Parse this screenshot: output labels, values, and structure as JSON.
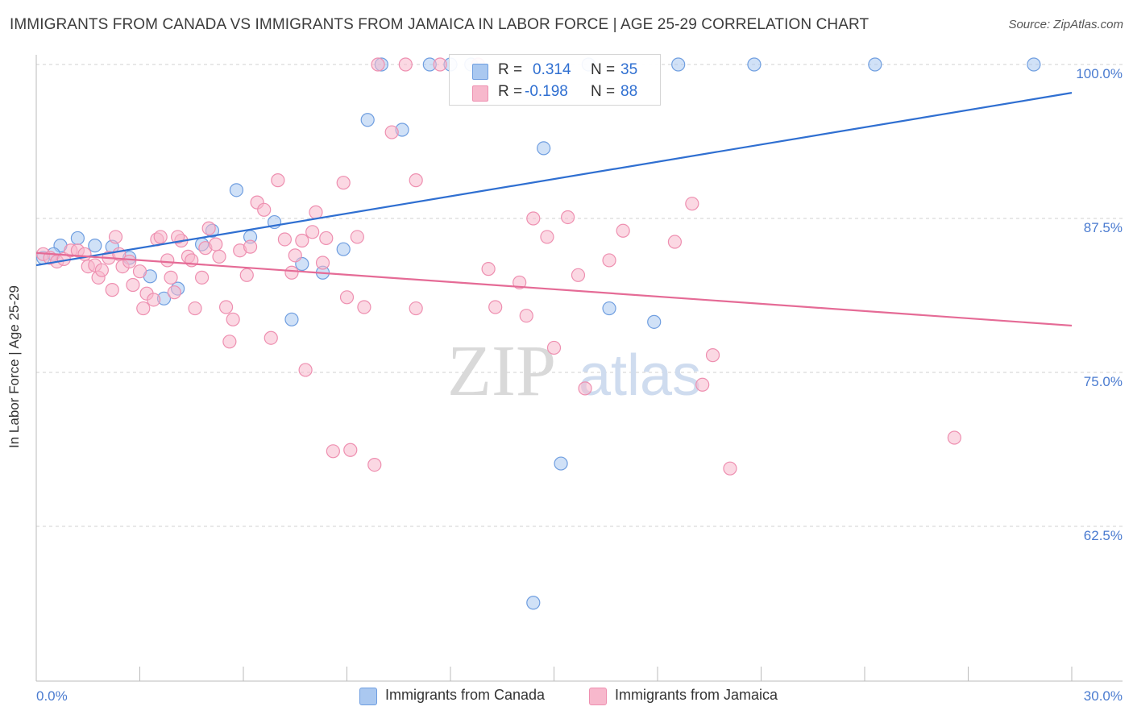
{
  "header": {
    "title": "IMMIGRANTS FROM CANADA VS IMMIGRANTS FROM JAMAICA IN LABOR FORCE | AGE 25-29 CORRELATION CHART",
    "source": "Source: ZipAtlas.com"
  },
  "watermark": {
    "part1": "ZIP",
    "part2": "atlas"
  },
  "colors": {
    "canada_fill": "#aac8f0",
    "canada_stroke": "#6f9ee0",
    "canada_line": "#2f6fd1",
    "jamaica_fill": "#f7b8cc",
    "jamaica_stroke": "#ee8fb0",
    "jamaica_line": "#e56b96",
    "tick_label": "#4a7bd0",
    "grid": "#d0d0d0"
  },
  "legend": {
    "rows": [
      {
        "r_label": "R =",
        "r_value": "0.314",
        "n_label": "N =",
        "n_value": "35"
      },
      {
        "r_label": "R =",
        "r_value": "-0.198",
        "n_label": "N =",
        "n_value": "88"
      }
    ]
  },
  "bottom_legend": [
    {
      "label": "Immigrants from Canada"
    },
    {
      "label": "Immigrants from Jamaica"
    }
  ],
  "chart_data": {
    "type": "scatter",
    "title": "IMMIGRANTS FROM CANADA VS IMMIGRANTS FROM JAMAICA IN LABOR FORCE | AGE 25-29 CORRELATION CHART",
    "xlabel": "",
    "ylabel": "In Labor Force | Age 25-29",
    "xlim": [
      0,
      30
    ],
    "ylim": [
      50,
      101
    ],
    "x_tick_labels": [
      "0.0%",
      "30.0%"
    ],
    "y_ticks": [
      62.5,
      75.0,
      87.5,
      100.0
    ],
    "y_tick_labels": [
      "62.5%",
      "75.0%",
      "87.5%",
      "100.0%"
    ],
    "grid": true,
    "legend_position": "top-center",
    "series": [
      {
        "name": "Immigrants from Canada",
        "trend": {
          "x0": 0.0,
          "y0": 83.7,
          "x1": 30.0,
          "y1": 97.7
        },
        "points": [
          [
            0.2,
            84.3
          ],
          [
            0.7,
            85.3
          ],
          [
            1.2,
            85.9
          ],
          [
            1.7,
            85.3
          ],
          [
            2.2,
            85.2
          ],
          [
            2.7,
            84.3
          ],
          [
            3.3,
            82.8
          ],
          [
            3.7,
            81.0
          ],
          [
            4.1,
            81.8
          ],
          [
            4.8,
            85.4
          ],
          [
            5.1,
            86.5
          ],
          [
            5.8,
            89.8
          ],
          [
            6.2,
            86.0
          ],
          [
            6.9,
            87.2
          ],
          [
            7.4,
            79.3
          ],
          [
            7.7,
            83.8
          ],
          [
            8.3,
            83.1
          ],
          [
            8.9,
            85.0
          ],
          [
            9.6,
            95.5
          ],
          [
            10.0,
            100.0
          ],
          [
            10.6,
            94.7
          ],
          [
            11.4,
            100.0
          ],
          [
            12.0,
            100.0
          ],
          [
            12.6,
            100.0
          ],
          [
            14.7,
            93.2
          ],
          [
            14.4,
            56.3
          ],
          [
            15.2,
            67.6
          ],
          [
            16.0,
            100.0
          ],
          [
            16.6,
            80.2
          ],
          [
            17.9,
            79.1
          ],
          [
            18.6,
            100.0
          ],
          [
            20.8,
            100.0
          ],
          [
            24.3,
            100.0
          ],
          [
            28.9,
            100.0
          ],
          [
            0.5,
            84.6
          ]
        ]
      },
      {
        "name": "Immigrants from Jamaica",
        "trend": {
          "x0": 0.0,
          "y0": 84.7,
          "x1": 30.0,
          "y1": 78.8
        },
        "points": [
          [
            0.2,
            84.6
          ],
          [
            0.4,
            84.3
          ],
          [
            0.6,
            84.0
          ],
          [
            0.8,
            84.2
          ],
          [
            1.0,
            84.9
          ],
          [
            1.2,
            84.9
          ],
          [
            1.4,
            84.6
          ],
          [
            1.5,
            83.6
          ],
          [
            1.7,
            83.7
          ],
          [
            1.8,
            82.7
          ],
          [
            1.9,
            83.3
          ],
          [
            2.1,
            84.3
          ],
          [
            2.2,
            81.7
          ],
          [
            2.3,
            86.0
          ],
          [
            2.5,
            83.6
          ],
          [
            2.7,
            84.0
          ],
          [
            2.8,
            82.1
          ],
          [
            3.0,
            83.2
          ],
          [
            3.1,
            80.2
          ],
          [
            3.2,
            81.4
          ],
          [
            3.4,
            80.9
          ],
          [
            3.5,
            85.8
          ],
          [
            3.6,
            86.0
          ],
          [
            3.8,
            84.1
          ],
          [
            3.9,
            82.7
          ],
          [
            4.0,
            81.5
          ],
          [
            4.2,
            85.7
          ],
          [
            4.4,
            84.4
          ],
          [
            4.5,
            84.1
          ],
          [
            4.6,
            80.2
          ],
          [
            4.8,
            82.7
          ],
          [
            4.9,
            85.1
          ],
          [
            5.0,
            86.7
          ],
          [
            5.2,
            85.4
          ],
          [
            5.5,
            80.3
          ],
          [
            5.6,
            77.5
          ],
          [
            5.7,
            79.3
          ],
          [
            5.9,
            84.9
          ],
          [
            6.1,
            82.9
          ],
          [
            6.2,
            85.2
          ],
          [
            6.4,
            88.8
          ],
          [
            6.6,
            88.2
          ],
          [
            6.8,
            77.8
          ],
          [
            7.0,
            90.6
          ],
          [
            7.2,
            85.8
          ],
          [
            7.4,
            83.1
          ],
          [
            7.5,
            84.5
          ],
          [
            7.7,
            85.7
          ],
          [
            7.8,
            75.2
          ],
          [
            8.0,
            86.4
          ],
          [
            8.1,
            88.0
          ],
          [
            8.3,
            83.9
          ],
          [
            8.4,
            85.9
          ],
          [
            8.6,
            68.6
          ],
          [
            8.9,
            90.4
          ],
          [
            9.1,
            68.7
          ],
          [
            9.0,
            81.1
          ],
          [
            9.3,
            86.0
          ],
          [
            9.5,
            80.3
          ],
          [
            9.8,
            67.5
          ],
          [
            10.3,
            94.5
          ],
          [
            10.7,
            100.0
          ],
          [
            11.0,
            80.2
          ],
          [
            11.0,
            90.6
          ],
          [
            11.7,
            100.0
          ],
          [
            12.8,
            100.0
          ],
          [
            13.1,
            83.4
          ],
          [
            13.3,
            80.3
          ],
          [
            14.0,
            82.3
          ],
          [
            14.2,
            79.6
          ],
          [
            14.4,
            87.5
          ],
          [
            14.8,
            86.0
          ],
          [
            15.0,
            77.0
          ],
          [
            15.4,
            87.6
          ],
          [
            15.7,
            82.9
          ],
          [
            15.9,
            73.7
          ],
          [
            16.6,
            84.1
          ],
          [
            17.0,
            86.5
          ],
          [
            18.5,
            85.6
          ],
          [
            19.0,
            88.7
          ],
          [
            19.3,
            74.0
          ],
          [
            19.6,
            76.4
          ],
          [
            20.1,
            67.2
          ],
          [
            26.6,
            69.7
          ],
          [
            9.9,
            100.0
          ],
          [
            4.1,
            86.0
          ],
          [
            5.3,
            84.4
          ],
          [
            2.4,
            84.6
          ]
        ]
      }
    ]
  }
}
